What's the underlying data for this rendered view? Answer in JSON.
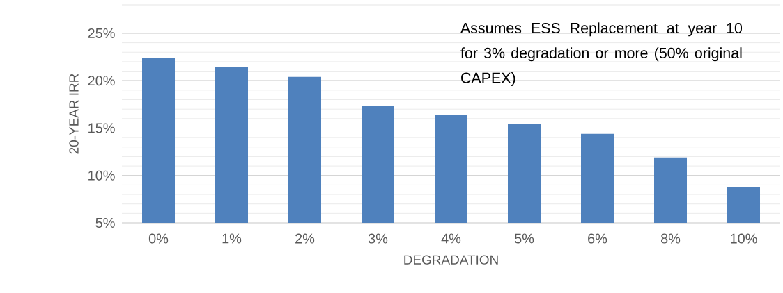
{
  "chart_data": {
    "type": "bar",
    "xlabel": "DEGRADATION",
    "ylabel": "20-YEAR IRR",
    "categories": [
      "0%",
      "1%",
      "2%",
      "3%",
      "4%",
      "5%",
      "6%",
      "8%",
      "10%"
    ],
    "values": [
      22.4,
      21.4,
      20.4,
      17.3,
      16.4,
      15.4,
      14.4,
      11.9,
      8.8
    ],
    "color": "#4f81bd",
    "ylim": [
      5,
      28
    ],
    "yticks": [
      {
        "value": 5,
        "label": "5%"
      },
      {
        "value": 10,
        "label": "10%"
      },
      {
        "value": 15,
        "label": "15%"
      },
      {
        "value": 20,
        "label": "20%"
      },
      {
        "value": 25,
        "label": "25%"
      }
    ],
    "grid": "y",
    "annotations": [
      "Assumes ESS Replacement at year 10 for 3% degradation or more (50% original CAPEX)"
    ]
  }
}
